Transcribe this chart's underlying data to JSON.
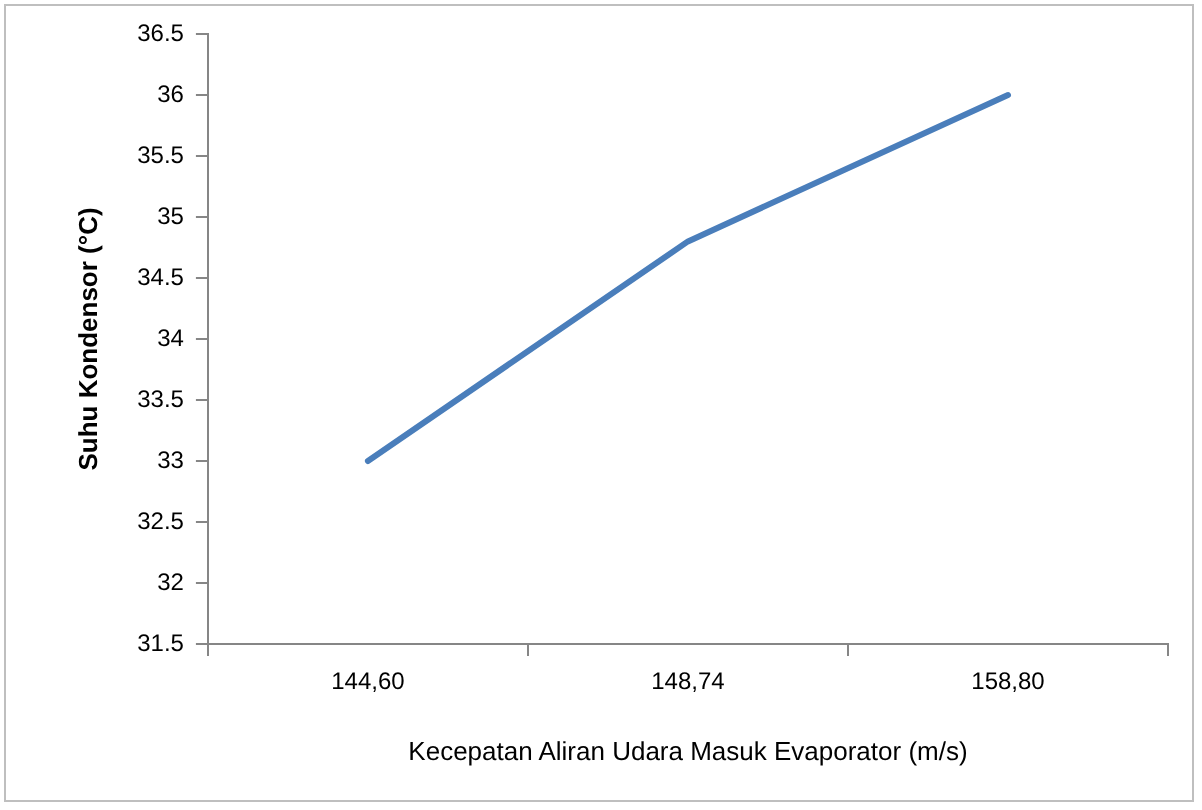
{
  "chart_data": {
    "type": "line",
    "xlabel": "Kecepatan Aliran Udara Masuk Evaporator (m/s)",
    "ylabel": "Suhu Kondensor (°C)",
    "categories": [
      "144,60",
      "148,74",
      "158,80"
    ],
    "series": [
      {
        "color": "#4a7ebb",
        "values": [
          33,
          34.8,
          36
        ]
      }
    ],
    "ylim": [
      31.5,
      36.5
    ],
    "yticks": [
      31.5,
      32,
      32.5,
      33,
      33.5,
      34,
      34.5,
      35,
      35.5,
      36,
      36.5
    ],
    "grid": false,
    "legend": false,
    "marker": "none",
    "line_style": "solid"
  }
}
